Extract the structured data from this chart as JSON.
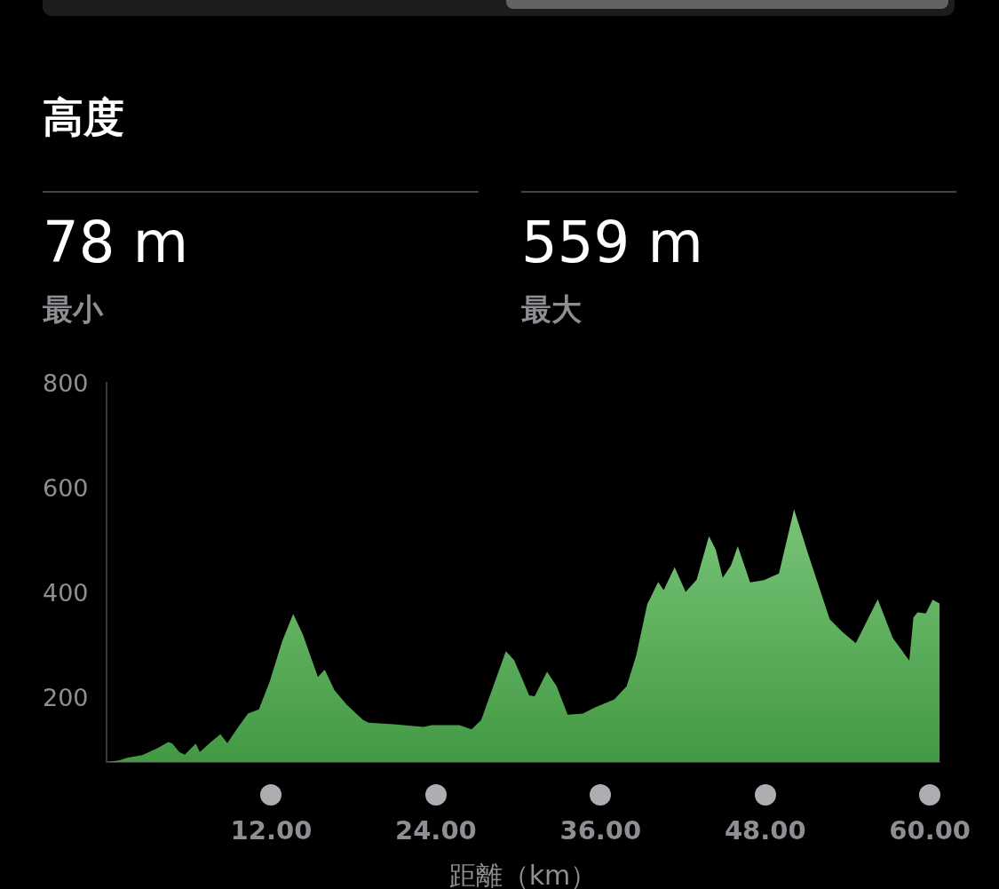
{
  "chart_data": {
    "type": "area",
    "title": "高度",
    "xlabel": "距離（km）",
    "annotations": [
      "78 m",
      "最小",
      "559 m",
      "最大"
    ],
    "x": [
      0,
      0.9,
      1.5,
      2.6,
      3.7,
      4.5,
      4.8,
      5.3,
      5.7,
      6.5,
      6.8,
      7.6,
      8.3,
      8.8,
      9.5,
      10.3,
      11.1,
      11.9,
      12.8,
      13.6,
      14.3,
      15.4,
      15.9,
      16.6,
      17.5,
      18.7,
      19.1,
      20.9,
      23.1,
      23.7,
      25.7,
      26.6,
      27.3,
      29.1,
      29.7,
      30.8,
      31.2,
      32.1,
      32.8,
      33.6,
      34.7,
      35.6,
      37.0,
      37.9,
      38.6,
      39.4,
      40.2,
      40.6,
      41.4,
      42.2,
      43.0,
      43.9,
      44.4,
      44.9,
      45.5,
      46.0,
      46.9,
      47.9,
      49.0,
      50.1,
      51.1,
      52.7,
      53.6,
      54.6,
      56.2,
      57.3,
      58.5,
      58.8,
      59.1,
      59.7,
      60.2,
      60.7
    ],
    "series": [
      {
        "color": "#5cb85c",
        "values": [
          78,
          81,
          86,
          91,
          104,
          116,
          113,
          97,
          92,
          113,
          97,
          116,
          131,
          114,
          141,
          170,
          178,
          232,
          308,
          360,
          321,
          240,
          254,
          215,
          187,
          158,
          153,
          150,
          145,
          148,
          148,
          140,
          158,
          289,
          272,
          205,
          203,
          250,
          222,
          168,
          170,
          182,
          197,
          222,
          281,
          378,
          421,
          405,
          449,
          402,
          425,
          508,
          482,
          429,
          452,
          489,
          420,
          424,
          437,
          559,
          476,
          350,
          326,
          304,
          388,
          314,
          271,
          353,
          363,
          361,
          387,
          380
        ]
      }
    ],
    "xlim": [
      0,
      60.7
    ],
    "xticks": [
      {
        "value": 12,
        "label": "12.00"
      },
      {
        "value": 24,
        "label": "24.00"
      },
      {
        "value": 36,
        "label": "36.00"
      },
      {
        "value": 48,
        "label": "48.00"
      },
      {
        "value": 60,
        "label": "60.00"
      }
    ],
    "ylim": [
      78,
      800
    ],
    "yticks": [
      200,
      400,
      600,
      800
    ],
    "grid": false,
    "marker": "none"
  }
}
